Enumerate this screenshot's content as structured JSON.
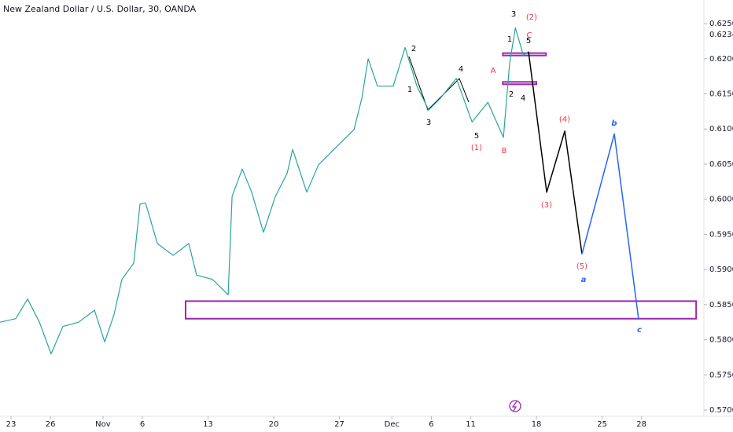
{
  "chart_data": {
    "type": "line",
    "title": "New Zealand Dollar / U.S. Dollar, 30, OANDA",
    "xlim": [
      -0.84,
      52.75
    ],
    "xticks": [
      {
        "value": 0,
        "label": "23"
      },
      {
        "value": 3,
        "label": "26"
      },
      {
        "value": 7,
        "label": "Nov"
      },
      {
        "value": 10,
        "label": "6"
      },
      {
        "value": 15,
        "label": "13"
      },
      {
        "value": 20,
        "label": "20"
      },
      {
        "value": 25,
        "label": "27"
      },
      {
        "value": 29,
        "label": "Dec"
      },
      {
        "value": 32,
        "label": "6"
      },
      {
        "value": 35,
        "label": "11"
      },
      {
        "value": 40,
        "label": "18"
      },
      {
        "value": 45,
        "label": "25"
      },
      {
        "value": 48,
        "label": "28"
      }
    ],
    "ylim": [
      0.56855,
      0.62836
    ],
    "yticks": [
      {
        "value": 0.57,
        "label": "0.57000"
      },
      {
        "value": 0.575,
        "label": "0.57500"
      },
      {
        "value": 0.58,
        "label": "0.58000"
      },
      {
        "value": 0.585,
        "label": "0.58500"
      },
      {
        "value": 0.59,
        "label": "0.59000"
      },
      {
        "value": 0.595,
        "label": "0.59500"
      },
      {
        "value": 0.6,
        "label": "0.60000"
      },
      {
        "value": 0.605,
        "label": "0.60500"
      },
      {
        "value": 0.61,
        "label": "0.61000"
      },
      {
        "value": 0.615,
        "label": "0.61500"
      },
      {
        "value": 0.62,
        "label": "0.62000"
      },
      {
        "value": 0.625,
        "label": "0.62500"
      }
    ],
    "last_price": {
      "value": 0.62343,
      "label": "0.62343"
    },
    "series": [
      {
        "color": "#26a69a",
        "x": [
          -0.84,
          0.36,
          1.26,
          2.16,
          3.05,
          3.95,
          5.15,
          6.35,
          7.13,
          7.84,
          8.44,
          9.34,
          9.82,
          10.24,
          11.14,
          12.34,
          13.53,
          14.13,
          15.33,
          16.53,
          16.83,
          17.6,
          18.32,
          19.22,
          20.12,
          21.02,
          21.44,
          22.51,
          23.41,
          24.91,
          26.11,
          26.71,
          27.19,
          27.9,
          29.1,
          30.0,
          30.9,
          31.8,
          32.7,
          33.9,
          35.1,
          36.3,
          37.49,
          37.96,
          38.4,
          39.0,
          39.4
        ],
        "values": [
          0.5825,
          0.583,
          0.5858,
          0.5825,
          0.578,
          0.5819,
          0.5825,
          0.5842,
          0.5797,
          0.5836,
          0.5886,
          0.5909,
          0.5993,
          0.5995,
          0.5937,
          0.592,
          0.5937,
          0.5892,
          0.5886,
          0.5864,
          0.6004,
          0.6043,
          0.601,
          0.5953,
          0.6004,
          0.6037,
          0.6071,
          0.601,
          0.6049,
          0.6077,
          0.6099,
          0.6144,
          0.62,
          0.6161,
          0.6161,
          0.6216,
          0.6161,
          0.6127,
          0.6144,
          0.6172,
          0.611,
          0.6138,
          0.6088,
          0.6194,
          0.6244,
          0.6205,
          0.621
        ]
      },
      {
        "color": "#000000",
        "x": [
          39.4,
          40.78,
          42.16,
          43.47
        ],
        "values": [
          0.621,
          0.601,
          0.6097,
          0.5922
        ]
      },
      {
        "color": "#2962ff",
        "x": [
          43.47,
          45.93,
          47.78
        ],
        "values": [
          0.5922,
          0.6093,
          0.5829
        ]
      }
    ],
    "zones": [
      {
        "color": "#9c27b0",
        "x": [
          13.29,
          52.16
        ],
        "y": [
          0.583,
          0.5855
        ]
      },
      {
        "color": "#9c27b0",
        "x": [
          37.44,
          40.73
        ],
        "y": [
          0.6205,
          0.6208
        ]
      },
      {
        "color": "#9c27b0",
        "x": [
          37.44,
          40.0
        ],
        "y": [
          0.6164,
          0.6167
        ]
      }
    ],
    "annotations": [
      {
        "text": "3",
        "color": "#000000"
      },
      {
        "text": "(2)",
        "color": "#f23645"
      },
      {
        "text": "1",
        "color": "#000000"
      },
      {
        "text": "C",
        "color": "#f23645"
      },
      {
        "text": "5",
        "color": "#000000"
      },
      {
        "text": "2",
        "color": "#000000"
      },
      {
        "text": "4",
        "color": "#000000"
      },
      {
        "text": "A",
        "color": "#f23645"
      },
      {
        "text": "B",
        "color": "#f23645"
      },
      {
        "text": "(1)",
        "color": "#f23645"
      },
      {
        "text": "5",
        "color": "#000000"
      },
      {
        "text": "3",
        "color": "#000000"
      },
      {
        "text": "1",
        "color": "#000000"
      },
      {
        "text": "2",
        "color": "#000000"
      },
      {
        "text": "4",
        "color": "#000000"
      },
      {
        "text": "(3)",
        "color": "#f23645"
      },
      {
        "text": "(4)",
        "color": "#f23645"
      },
      {
        "text": "(5)",
        "color": "#f23645"
      },
      {
        "text": "a",
        "color": "#2962ff"
      },
      {
        "text": "b",
        "color": "#2962ff"
      },
      {
        "text": "c",
        "color": "#2962ff"
      }
    ]
  }
}
